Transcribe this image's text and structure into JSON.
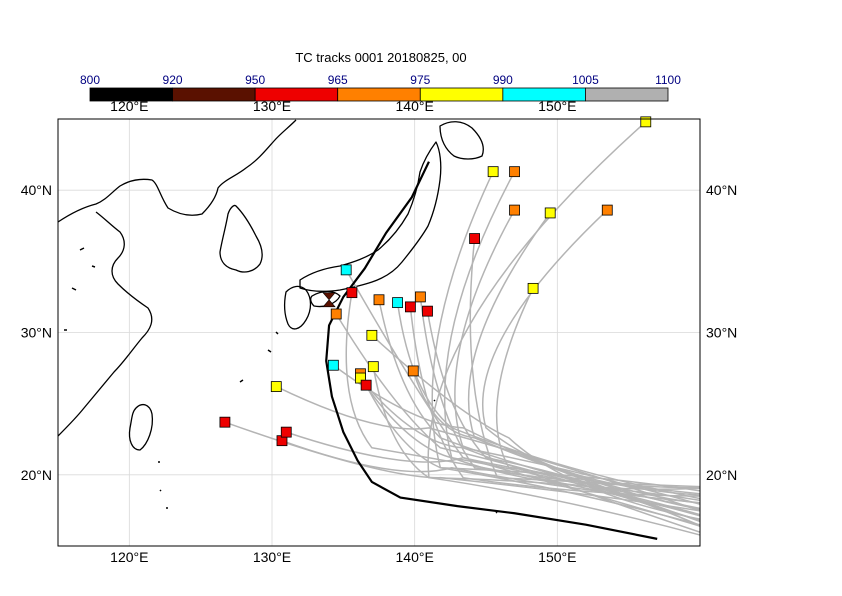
{
  "title": "TC tracks  0001 20180825, 00",
  "colorbar": {
    "labels": [
      "800",
      "920",
      "950",
      "965",
      "975",
      "990",
      "1005",
      "1100"
    ],
    "colors": [
      "#000000",
      "#5a1100",
      "#ee0000",
      "#ff8000",
      "#ffff00",
      "#00ffff",
      "#b0b0b0"
    ]
  },
  "map": {
    "lon_range": [
      115,
      160
    ],
    "lat_range": [
      15,
      45
    ],
    "x_ticks": [
      {
        "value": 120,
        "label": "120°E"
      },
      {
        "value": 130,
        "label": "130°E"
      },
      {
        "value": 140,
        "label": "140°E"
      },
      {
        "value": 150,
        "label": "150°E"
      }
    ],
    "y_ticks": [
      {
        "value": 20,
        "label": "20°N"
      },
      {
        "value": 30,
        "label": "30°N"
      },
      {
        "value": 40,
        "label": "40°N"
      }
    ],
    "grid": true,
    "track_color": "#b4b4b4",
    "best_track_color": "#000000"
  },
  "chart_data": {
    "type": "scatter",
    "ensemble_endpoints": [
      {
        "lon": 156.2,
        "lat": 44.8,
        "class": "975-990"
      },
      {
        "lon": 145.5,
        "lat": 41.3,
        "class": "975-990"
      },
      {
        "lon": 147.0,
        "lat": 41.3,
        "class": "965-975"
      },
      {
        "lon": 147.0,
        "lat": 38.6,
        "class": "965-975"
      },
      {
        "lon": 149.5,
        "lat": 38.4,
        "class": "975-990"
      },
      {
        "lon": 153.5,
        "lat": 38.6,
        "class": "965-975"
      },
      {
        "lon": 144.2,
        "lat": 36.6,
        "class": "950-965"
      },
      {
        "lon": 148.3,
        "lat": 33.1,
        "class": "975-990"
      },
      {
        "lon": 135.2,
        "lat": 34.4,
        "class": "990-1005"
      },
      {
        "lon": 135.6,
        "lat": 32.8,
        "class": "950-965"
      },
      {
        "lon": 137.5,
        "lat": 32.3,
        "class": "965-975"
      },
      {
        "lon": 138.8,
        "lat": 32.1,
        "class": "990-1005"
      },
      {
        "lon": 139.7,
        "lat": 31.8,
        "class": "950-965"
      },
      {
        "lon": 140.4,
        "lat": 32.5,
        "class": "965-975"
      },
      {
        "lon": 140.9,
        "lat": 31.5,
        "class": "950-965"
      },
      {
        "lon": 134.5,
        "lat": 31.3,
        "class": "965-975"
      },
      {
        "lon": 137.0,
        "lat": 29.8,
        "class": "975-990"
      },
      {
        "lon": 134.3,
        "lat": 27.7,
        "class": "990-1005"
      },
      {
        "lon": 137.1,
        "lat": 27.6,
        "class": "975-990"
      },
      {
        "lon": 136.2,
        "lat": 27.1,
        "class": "965-975"
      },
      {
        "lon": 136.2,
        "lat": 26.8,
        "class": "975-990"
      },
      {
        "lon": 136.6,
        "lat": 26.3,
        "class": "950-965"
      },
      {
        "lon": 139.9,
        "lat": 27.3,
        "class": "965-975"
      },
      {
        "lon": 130.3,
        "lat": 26.2,
        "class": "975-990"
      },
      {
        "lon": 126.7,
        "lat": 23.7,
        "class": "950-965"
      },
      {
        "lon": 130.7,
        "lat": 22.4,
        "class": "950-965"
      },
      {
        "lon": 131.0,
        "lat": 23.0,
        "class": "950-965"
      }
    ],
    "best_track_marker": {
      "lon": 134.0,
      "lat": 32.3,
      "class": "920-950"
    },
    "best_track": [
      [
        157.0,
        15.5
      ],
      [
        152.0,
        16.5
      ],
      [
        147.0,
        17.3
      ],
      [
        143.0,
        17.8
      ],
      [
        139.0,
        18.4
      ],
      [
        137.0,
        19.5
      ],
      [
        136.0,
        21.0
      ],
      [
        135.0,
        23.0
      ],
      [
        134.2,
        25.5
      ],
      [
        133.8,
        28.0
      ],
      [
        134.0,
        30.5
      ],
      [
        135.0,
        32.5
      ],
      [
        136.5,
        34.5
      ],
      [
        138.0,
        37.0
      ],
      [
        139.8,
        39.5
      ],
      [
        141.0,
        42.0
      ]
    ]
  }
}
